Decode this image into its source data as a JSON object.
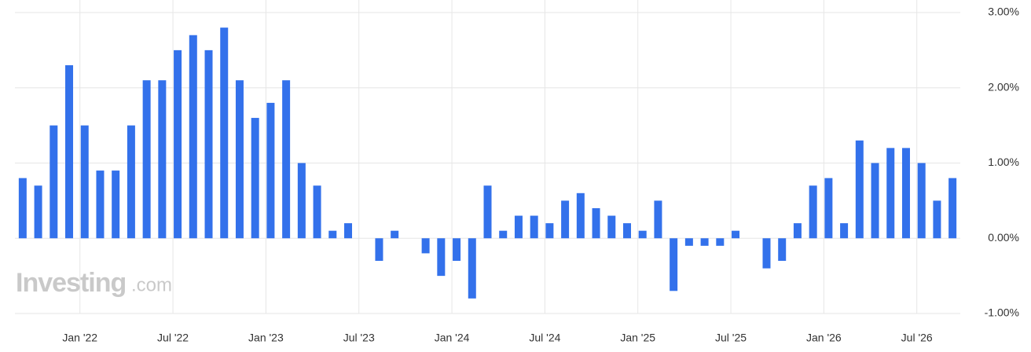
{
  "chart_data": {
    "type": "bar",
    "categories": [
      null,
      null,
      null,
      null,
      "Jan '22",
      null,
      null,
      null,
      null,
      null,
      "Jul '22",
      null,
      null,
      null,
      null,
      null,
      "Jan '23",
      null,
      null,
      null,
      null,
      null,
      "Jul '23",
      null,
      null,
      null,
      null,
      null,
      "Jan '24",
      null,
      null,
      null,
      null,
      null,
      "Jul '24",
      null,
      null,
      null,
      null,
      null,
      "Jan '25",
      null,
      null,
      null,
      null,
      null,
      "Jul '25",
      null,
      null,
      null,
      null,
      null,
      "Jan '26",
      null,
      null,
      null,
      null,
      null,
      "Jul '26",
      null,
      null
    ],
    "values": [
      0.8,
      0.7,
      1.5,
      2.3,
      1.5,
      0.9,
      0.9,
      1.5,
      2.1,
      2.1,
      2.5,
      2.7,
      2.5,
      2.8,
      2.1,
      1.6,
      1.8,
      2.1,
      1.0,
      0.7,
      0.1,
      0.2,
      0,
      -0.3,
      0.1,
      0,
      -0.2,
      -0.5,
      -0.3,
      -0.8,
      0.7,
      0.1,
      0.3,
      0.3,
      0.2,
      0.5,
      0.6,
      0.4,
      0.3,
      0.2,
      0.1,
      0.5,
      -0.7,
      -0.1,
      -0.1,
      -0.1,
      0.1,
      0,
      -0.4,
      -0.3,
      0.2,
      0.7,
      0.8,
      0.2,
      1.3,
      1.0,
      1.2,
      1.2,
      1.0,
      0.5,
      0.8
    ],
    "color": "#3371eb",
    "ylim": [
      -1,
      3
    ],
    "yticks": [
      {
        "value": 3,
        "label": "3.00%"
      },
      {
        "value": 2,
        "label": "2.00%"
      },
      {
        "value": 1,
        "label": "1.00%"
      },
      {
        "value": 0,
        "label": "0.00%"
      },
      {
        "value": -1,
        "label": "-1.00%"
      }
    ],
    "grid": true
  },
  "watermark": {
    "brand": "Investing",
    "suffix": ".com"
  }
}
